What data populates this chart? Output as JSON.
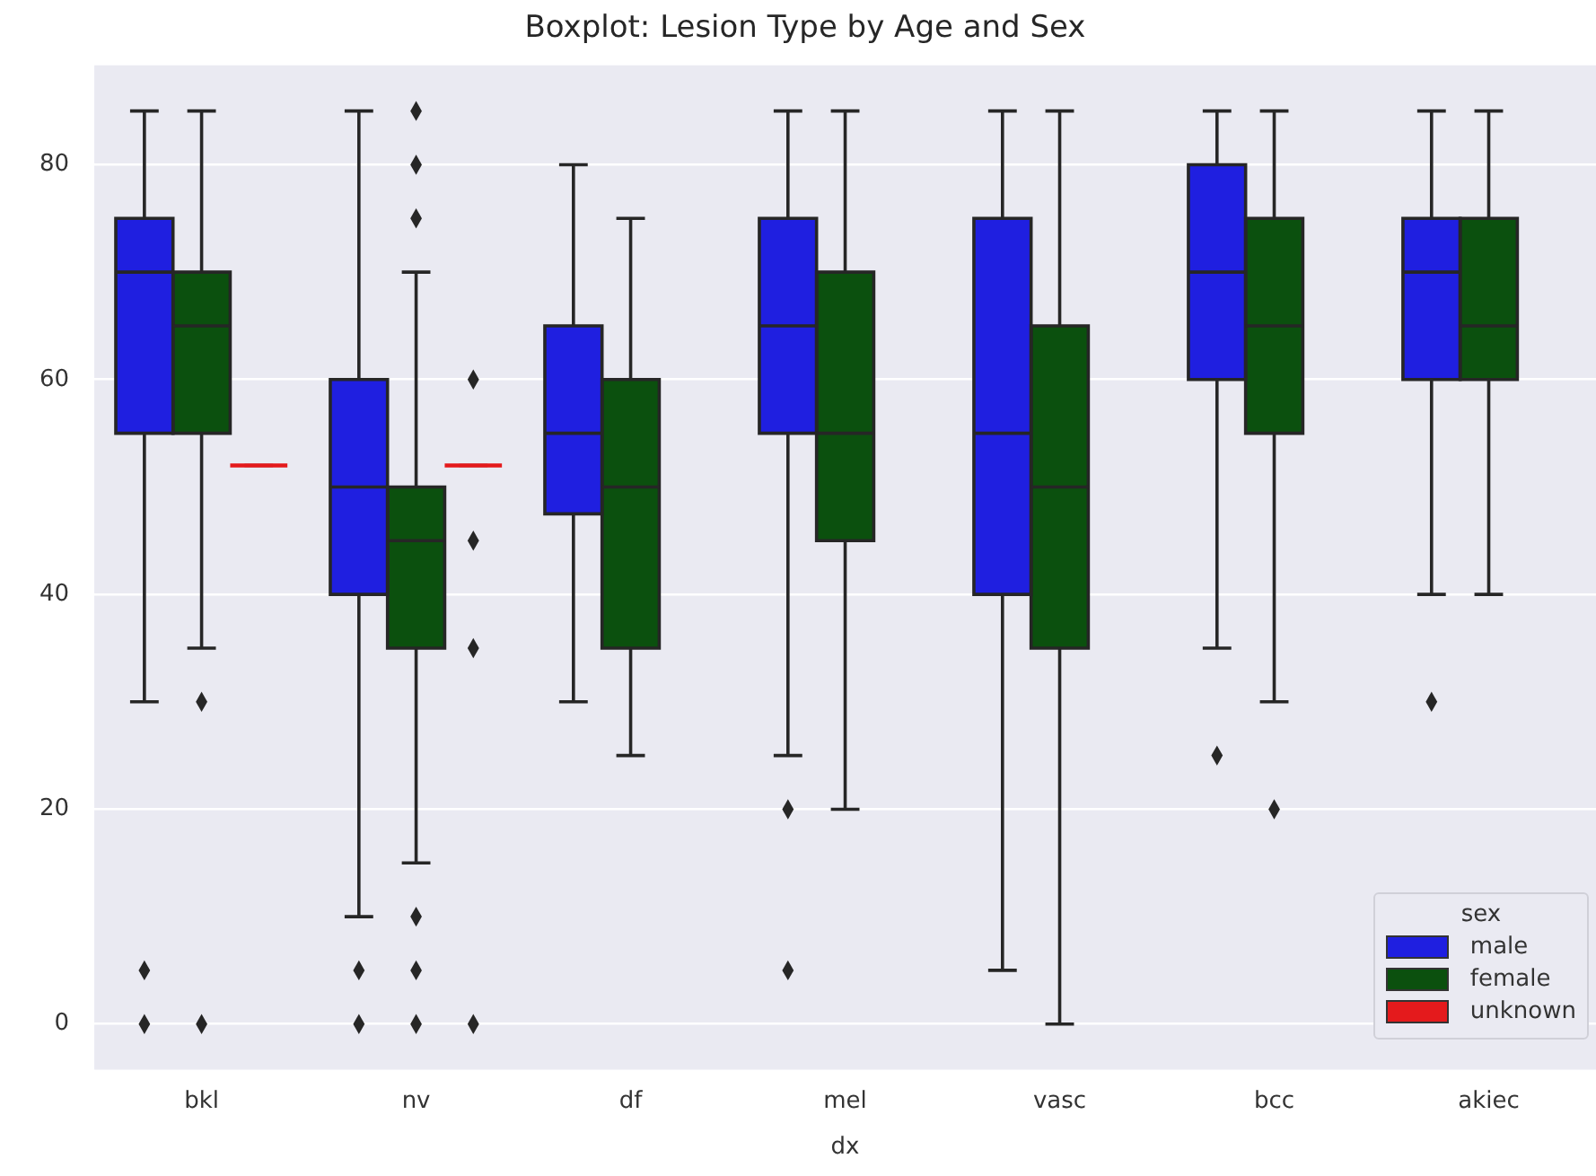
{
  "chart_data": {
    "type": "box",
    "title": "Boxplot: Lesion Type by Age and Sex",
    "xlabel": "dx",
    "legend_title": "sex",
    "legend": "bottom right",
    "grid": "y",
    "marker": "diamond",
    "categories": [
      "bkl",
      "nv",
      "df",
      "mel",
      "vasc",
      "bcc",
      "akiec"
    ],
    "ylim": [
      -4.25,
      89.25
    ],
    "yticks": [
      0,
      20,
      40,
      60,
      80
    ],
    "series": [
      {
        "name": "male",
        "color": "#1f1fe0",
        "boxes": [
          {
            "low": 30,
            "q1": 55,
            "median": 70,
            "q3": 75,
            "high": 85,
            "outliers": [
              5,
              0
            ]
          },
          {
            "low": 10,
            "q1": 40,
            "median": 50,
            "q3": 60,
            "high": 85,
            "outliers": [
              5,
              0
            ]
          },
          {
            "low": 30,
            "q1": 47.5,
            "median": 55,
            "q3": 65,
            "high": 80
          },
          {
            "low": 25,
            "q1": 55,
            "median": 65,
            "q3": 75,
            "high": 85,
            "outliers": [
              20,
              5
            ]
          },
          {
            "low": 5,
            "q1": 40,
            "median": 55,
            "q3": 75,
            "high": 85
          },
          {
            "low": 35,
            "q1": 60,
            "median": 70,
            "q3": 80,
            "high": 85,
            "outliers": [
              25
            ]
          },
          {
            "low": 40,
            "q1": 60,
            "median": 70,
            "q3": 75,
            "high": 85,
            "outliers": [
              30
            ]
          }
        ]
      },
      {
        "name": "female",
        "color": "#0b500e",
        "boxes": [
          {
            "low": 35,
            "q1": 55,
            "median": 65,
            "q3": 70,
            "high": 85,
            "outliers": [
              30,
              0
            ]
          },
          {
            "low": 15,
            "q1": 35,
            "median": 45,
            "q3": 50,
            "high": 70,
            "outliers": [
              85,
              80,
              75,
              10,
              5,
              0
            ]
          },
          {
            "low": 25,
            "q1": 35,
            "median": 50,
            "q3": 60,
            "high": 75
          },
          {
            "low": 20,
            "q1": 45,
            "median": 55,
            "q3": 70,
            "high": 85
          },
          {
            "low": 0,
            "q1": 35,
            "median": 50,
            "q3": 65,
            "high": 85
          },
          {
            "low": 30,
            "q1": 55,
            "median": 65,
            "q3": 75,
            "high": 85,
            "outliers": [
              20
            ]
          },
          {
            "low": 40,
            "q1": 60,
            "median": 65,
            "q3": 75,
            "high": 85
          }
        ]
      },
      {
        "name": "unknown",
        "color": "#e41a1c",
        "boxes": [
          {
            "low": 52,
            "q1": 52,
            "median": 52,
            "q3": 52,
            "high": 52
          },
          {
            "low": 52,
            "q1": 52,
            "median": 52,
            "q3": 52,
            "high": 52,
            "outliers": [
              60,
              45,
              35,
              0
            ]
          },
          null,
          null,
          null,
          null,
          null
        ]
      }
    ]
  }
}
